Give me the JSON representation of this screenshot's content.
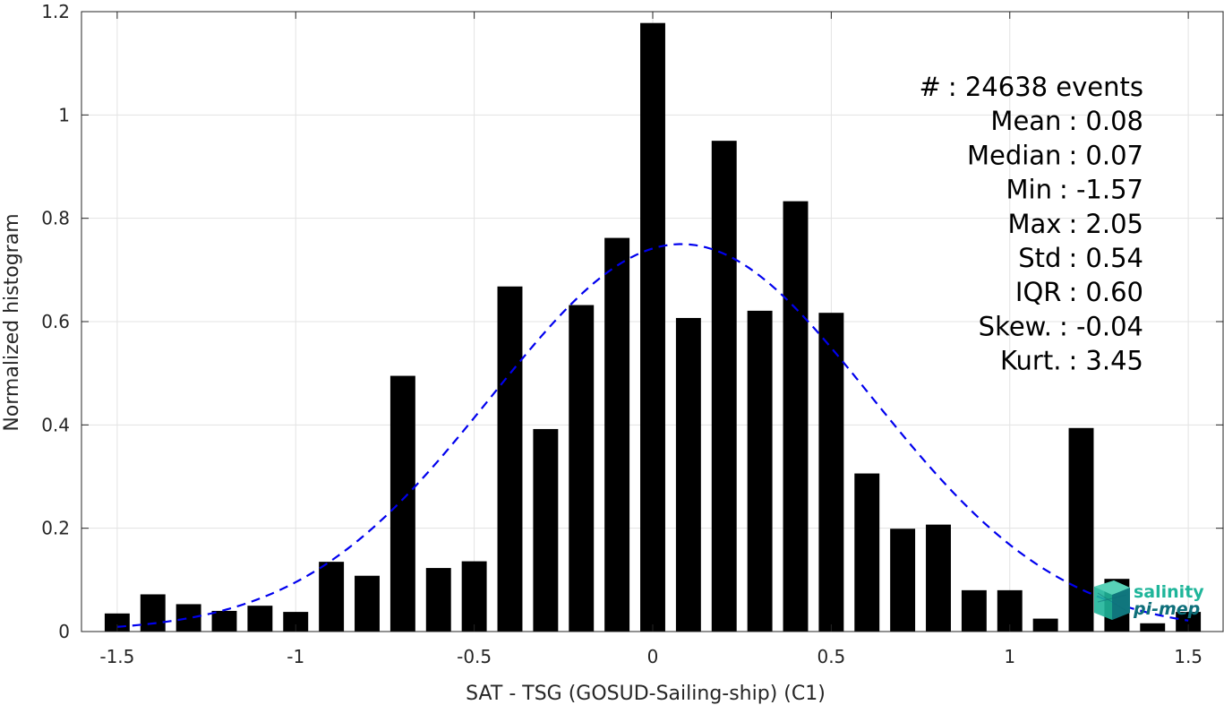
{
  "chart_data": {
    "type": "bar",
    "xlabel": "SAT - TSG (GOSUD-Sailing-ship) (C1)",
    "ylabel": "Normalized histogram",
    "xlim": [
      -1.6,
      1.6
    ],
    "ylim": [
      0,
      1.2
    ],
    "xticks": [
      -1.5,
      -1,
      -0.5,
      0,
      0.5,
      1,
      1.5
    ],
    "xtick_labels": [
      "-1.5",
      "-1",
      "-0.5",
      "0",
      "0.5",
      "1",
      "1.5"
    ],
    "yticks": [
      0,
      0.2,
      0.4,
      0.6,
      0.8,
      1,
      1.2
    ],
    "ytick_labels": [
      "0",
      "0.2",
      "0.4",
      "0.6",
      "0.8",
      "1",
      "1.2"
    ],
    "grid": true,
    "bar_width": 0.07,
    "bar_color": "#000000",
    "bars": [
      {
        "x": -1.5,
        "y": 0.035
      },
      {
        "x": -1.4,
        "y": 0.072
      },
      {
        "x": -1.3,
        "y": 0.053
      },
      {
        "x": -1.2,
        "y": 0.04
      },
      {
        "x": -1.1,
        "y": 0.05
      },
      {
        "x": -1.0,
        "y": 0.038
      },
      {
        "x": -0.9,
        "y": 0.135
      },
      {
        "x": -0.8,
        "y": 0.108
      },
      {
        "x": -0.7,
        "y": 0.495
      },
      {
        "x": -0.6,
        "y": 0.123
      },
      {
        "x": -0.5,
        "y": 0.136
      },
      {
        "x": -0.4,
        "y": 0.668
      },
      {
        "x": -0.3,
        "y": 0.392
      },
      {
        "x": -0.2,
        "y": 0.632
      },
      {
        "x": -0.1,
        "y": 0.762
      },
      {
        "x": 0.0,
        "y": 1.178
      },
      {
        "x": 0.1,
        "y": 0.607
      },
      {
        "x": 0.2,
        "y": 0.95
      },
      {
        "x": 0.3,
        "y": 0.621
      },
      {
        "x": 0.4,
        "y": 0.833
      },
      {
        "x": 0.5,
        "y": 0.617
      },
      {
        "x": 0.6,
        "y": 0.306
      },
      {
        "x": 0.7,
        "y": 0.199
      },
      {
        "x": 0.8,
        "y": 0.207
      },
      {
        "x": 0.9,
        "y": 0.08
      },
      {
        "x": 1.0,
        "y": 0.08
      },
      {
        "x": 1.1,
        "y": 0.025
      },
      {
        "x": 1.2,
        "y": 0.394
      },
      {
        "x": 1.3,
        "y": 0.102
      },
      {
        "x": 1.4,
        "y": 0.016
      },
      {
        "x": 1.5,
        "y": 0.038
      }
    ],
    "fit_curve": {
      "style": "dashed",
      "color": "#0000ee",
      "x_range": [
        -1.5,
        1.5
      ],
      "mean": 0.08,
      "std": 0.532,
      "peak": 0.75
    }
  },
  "stats": [
    {
      "label": "#",
      "value": ": 24638 events"
    },
    {
      "label": "Mean",
      "value": ": 0.08"
    },
    {
      "label": "Median",
      "value": ": 0.07"
    },
    {
      "label": "Min",
      "value": ": -1.57"
    },
    {
      "label": "Max",
      "value": ": 2.05"
    },
    {
      "label": "Std",
      "value": ": 0.54"
    },
    {
      "label": "IQR",
      "value": ": 0.60"
    },
    {
      "label": "Skew.",
      "value": ": -0.04"
    },
    {
      "label": "Kurt.",
      "value": ": 3.45"
    }
  ],
  "logo": {
    "line1": "salinity",
    "line2": "pi-mep",
    "icon": "cube-logo-icon",
    "color1": "#1fb59a",
    "color2": "#0e6f7a"
  }
}
